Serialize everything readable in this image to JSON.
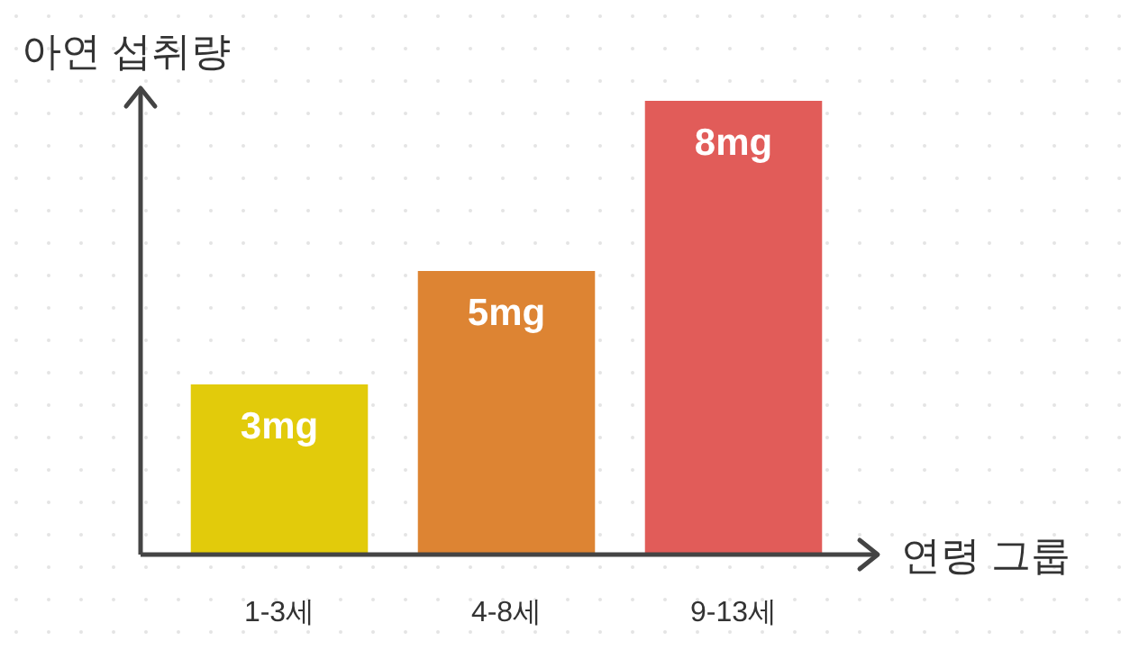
{
  "chart_data": {
    "type": "bar",
    "xlabel": "연령 그룹",
    "ylabel": "아연 섭취량",
    "categories": [
      "1-3세",
      "4-8세",
      "9-13세"
    ],
    "values": [
      3,
      5,
      8
    ],
    "colors": [
      "#e2cb0b",
      "#dd8433",
      "#e15c59"
    ],
    "value_labels": [
      "3mg",
      "5mg",
      "8mg"
    ]
  }
}
